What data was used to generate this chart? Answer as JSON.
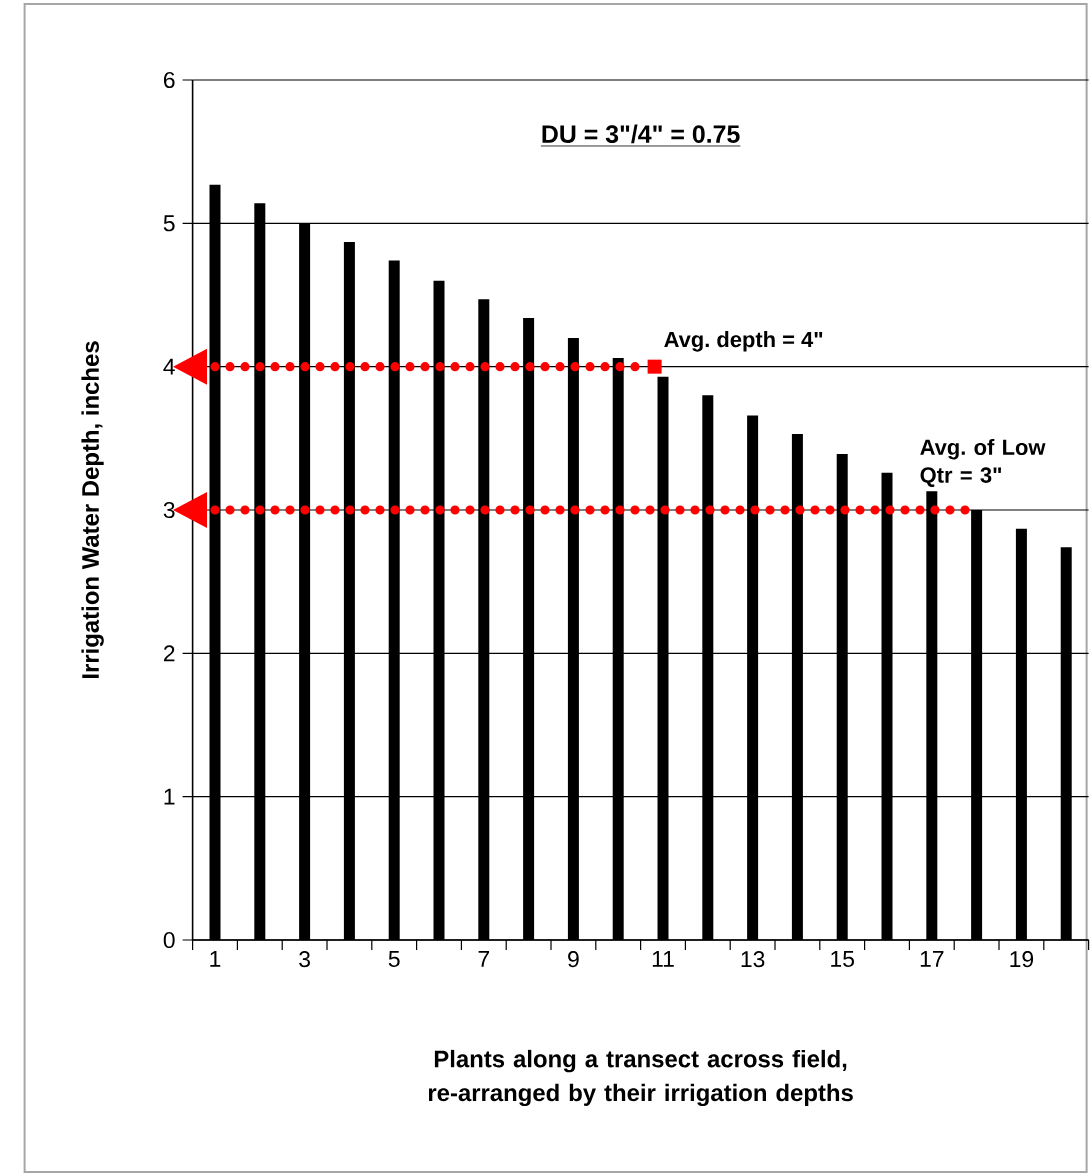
{
  "chart_data": {
    "type": "bar",
    "xlabel": "Plants along a transect across field, re-arranged by their irrigation depths",
    "ylabel": "Irrigation Water Depth, inches",
    "x": [
      1,
      2,
      3,
      4,
      5,
      6,
      7,
      8,
      9,
      10,
      11,
      12,
      13,
      14,
      15,
      16,
      17,
      18,
      19,
      20
    ],
    "xlim": [
      0.5,
      20.5
    ],
    "xticks": [
      1,
      3,
      5,
      7,
      9,
      11,
      13,
      15,
      17,
      19,
      {
        "value": 0.5,
        "label": null
      },
      {
        "value": 1.5,
        "label": null
      },
      {
        "value": 2.5,
        "label": null
      },
      {
        "value": 3.5,
        "label": null
      },
      {
        "value": 4.5,
        "label": null
      },
      {
        "value": 5.5,
        "label": null
      },
      {
        "value": 6.5,
        "label": null
      },
      {
        "value": 7.5,
        "label": null
      },
      {
        "value": 8.5,
        "label": null
      },
      {
        "value": 9.5,
        "label": null
      },
      {
        "value": 10.5,
        "label": null
      },
      {
        "value": 11.5,
        "label": null
      },
      {
        "value": 12.5,
        "label": null
      },
      {
        "value": 13.5,
        "label": null
      },
      {
        "value": 14.5,
        "label": null
      },
      {
        "value": 15.5,
        "label": null
      },
      {
        "value": 16.5,
        "label": null
      },
      {
        "value": 17.5,
        "label": null
      },
      {
        "value": 18.5,
        "label": null
      },
      {
        "value": 19.5,
        "label": null
      },
      {
        "value": 20.5,
        "label": null
      }
    ],
    "ylim": [
      0,
      6
    ],
    "yticks": [
      0,
      1,
      2,
      3,
      4,
      5,
      6
    ],
    "grid": "y",
    "series": [
      {
        "color": "#000000",
        "values": [
          5.27,
          5.14,
          5.0,
          4.87,
          4.74,
          4.6,
          4.47,
          4.34,
          4.2,
          4.06,
          3.93,
          3.8,
          3.66,
          3.53,
          3.39,
          3.26,
          3.13,
          3.0,
          2.87,
          2.74
        ]
      },
      {
        "type": "line",
        "x": [
          1,
          10.5
        ],
        "values": [
          4,
          4
        ],
        "color": "#ff0000",
        "line_style": "dotted"
      },
      {
        "type": "line",
        "x": [
          1,
          18
        ],
        "values": [
          3,
          3
        ],
        "color": "#ff0000",
        "line_style": "dotted"
      }
    ],
    "annotations": [
      "DU = 3\"/4\" = 0.75",
      {
        "text": "Avg. depth = 4\"",
        "x": 10.5,
        "y": 4
      },
      {
        "text": "Avg. of Low Qtr = 3\"",
        "x": 18,
        "y": 3
      }
    ]
  }
}
